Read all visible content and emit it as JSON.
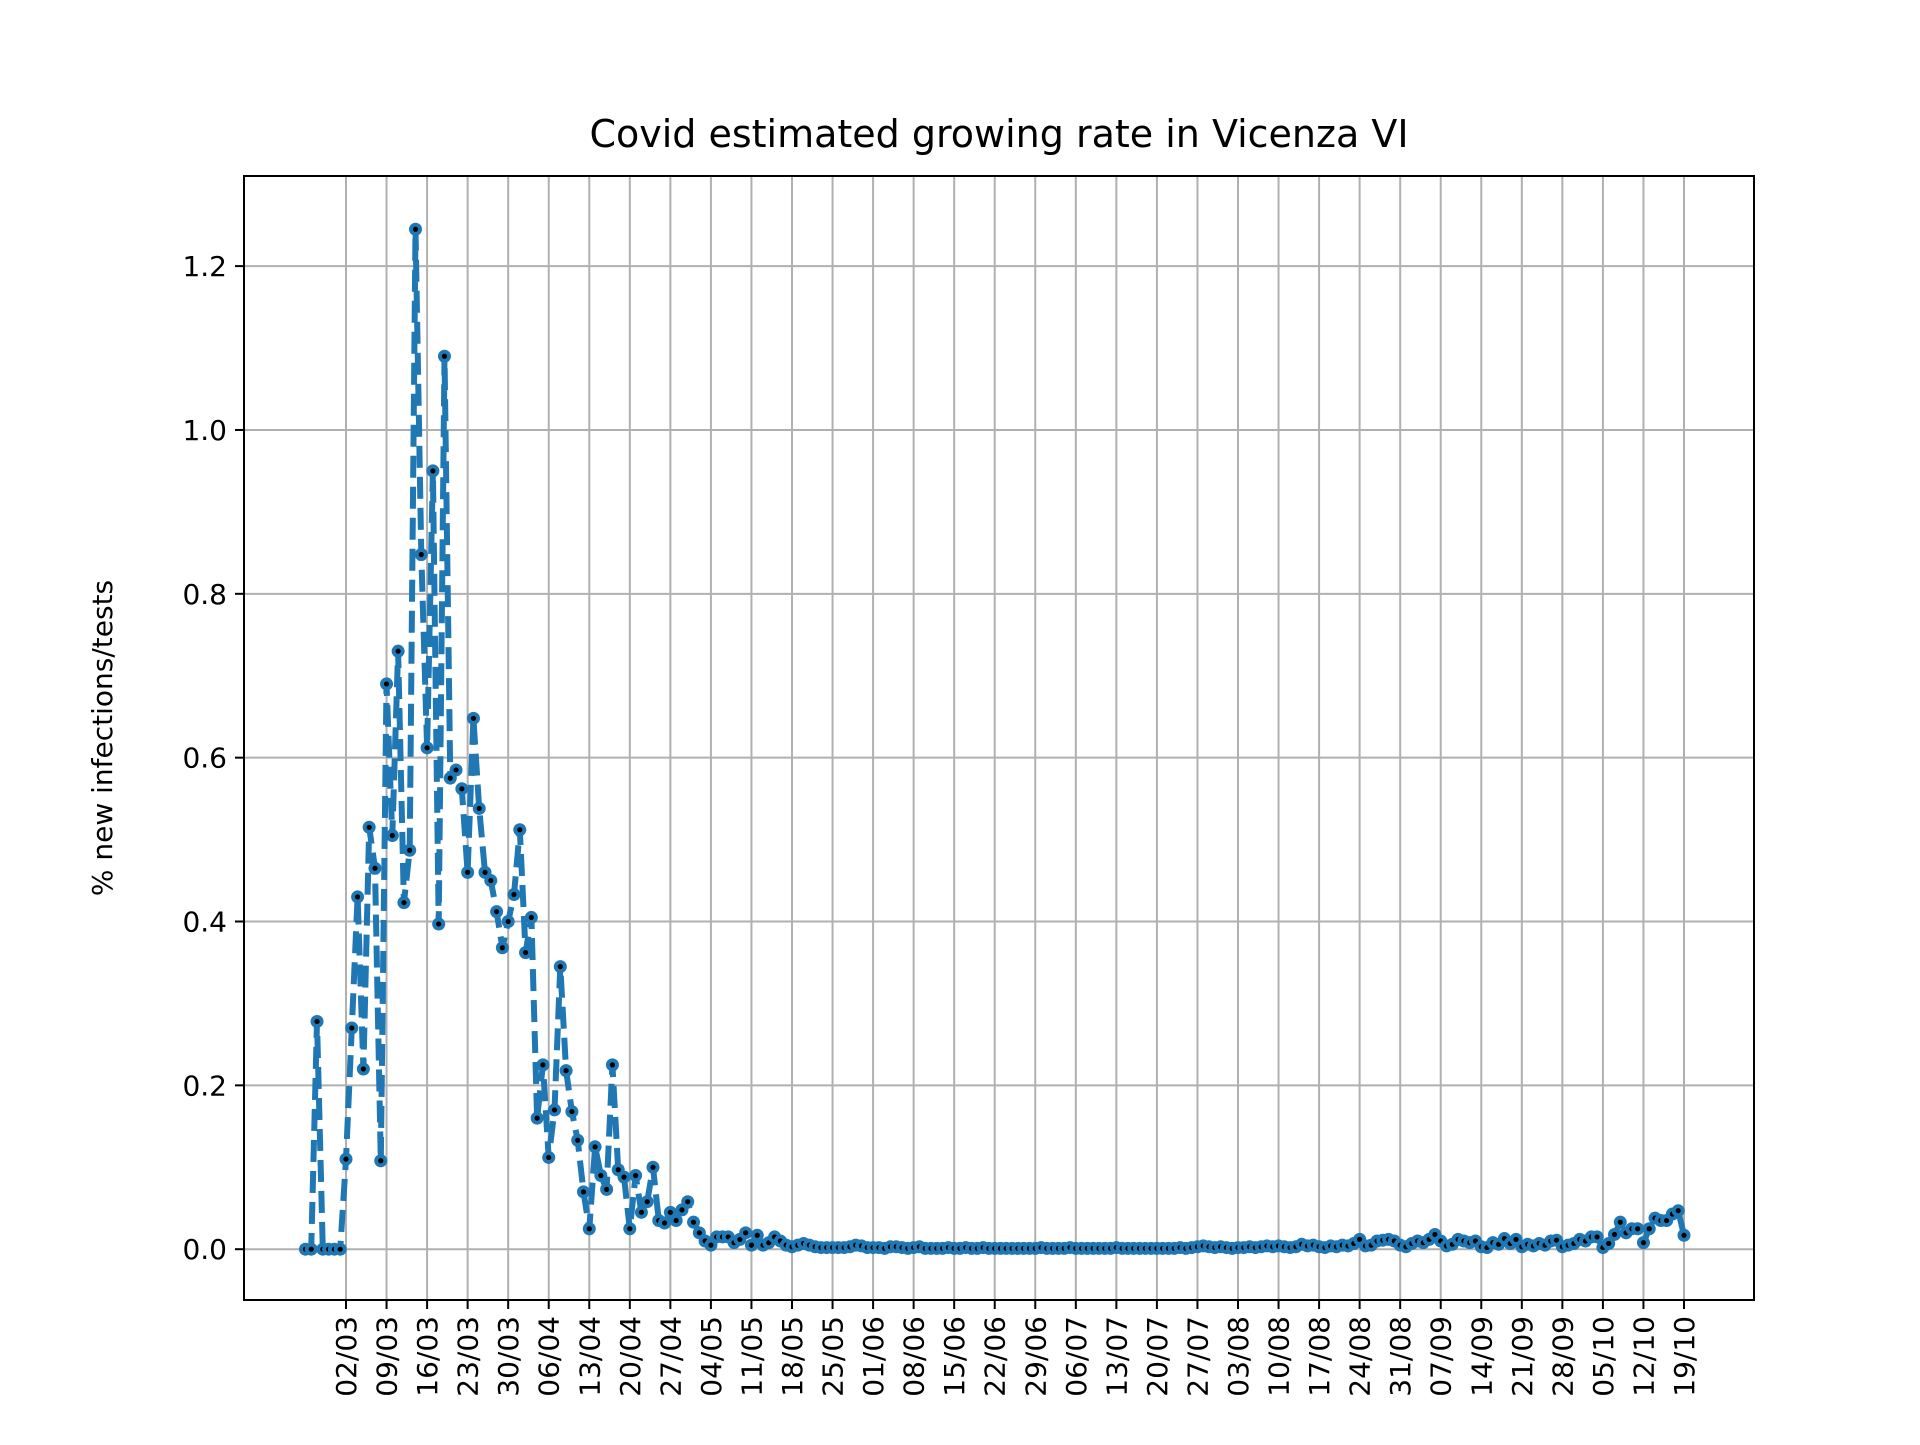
{
  "chart_data": {
    "type": "line",
    "title": "Covid estimated growing rate in Vicenza VI",
    "xlabel": "",
    "ylabel": "% new infections/tests",
    "x_is_date": true,
    "year": 2020,
    "categories": [
      "02/03",
      "09/03",
      "16/03",
      "23/03",
      "30/03",
      "06/04",
      "13/04",
      "20/04",
      "27/04",
      "04/05",
      "11/05",
      "18/05",
      "25/05",
      "01/06",
      "08/06",
      "15/06",
      "22/06",
      "29/06",
      "06/07",
      "13/07",
      "20/07",
      "27/07",
      "03/08",
      "10/08",
      "17/08",
      "24/08",
      "31/08",
      "07/09",
      "14/09",
      "21/09",
      "28/09",
      "05/10",
      "12/10",
      "19/10"
    ],
    "ylim": [
      -0.062,
      1.31
    ],
    "yticks": [
      "0.0",
      "0.2",
      "0.4",
      "0.6",
      "0.8",
      "1.0",
      "1.2"
    ],
    "grid": true,
    "legend": "none",
    "series": [
      {
        "color": "#1f77b4",
        "line_style": "dashed",
        "marker": "dot",
        "points": [
          [
            "2020-02-24",
            0.0
          ],
          [
            "2020-02-25",
            0.0
          ],
          [
            "2020-02-26",
            0.278
          ],
          [
            "2020-02-27",
            0.0
          ],
          [
            "2020-02-28",
            0.0
          ],
          [
            "2020-02-29",
            0.0
          ],
          [
            "2020-03-01",
            0.0
          ],
          [
            "2020-03-02",
            0.11
          ],
          [
            "2020-03-03",
            0.27
          ],
          [
            "2020-03-04",
            0.43
          ],
          [
            "2020-03-05",
            0.22
          ],
          [
            "2020-03-06",
            0.515
          ],
          [
            "2020-03-07",
            0.465
          ],
          [
            "2020-03-08",
            0.108
          ],
          [
            "2020-03-09",
            0.69
          ],
          [
            "2020-03-10",
            0.505
          ],
          [
            "2020-03-11",
            0.73
          ],
          [
            "2020-03-12",
            0.423
          ],
          [
            "2020-03-13",
            0.487
          ],
          [
            "2020-03-14",
            1.245
          ],
          [
            "2020-03-15",
            0.848
          ],
          [
            "2020-03-16",
            0.612
          ],
          [
            "2020-03-17",
            0.95
          ],
          [
            "2020-03-18",
            0.397
          ],
          [
            "2020-03-19",
            1.09
          ],
          [
            "2020-03-20",
            0.575
          ],
          [
            "2020-03-21",
            0.585
          ],
          [
            "2020-03-22",
            0.562
          ],
          [
            "2020-03-23",
            0.46
          ],
          [
            "2020-03-24",
            0.648
          ],
          [
            "2020-03-25",
            0.538
          ],
          [
            "2020-03-26",
            0.46
          ],
          [
            "2020-03-27",
            0.45
          ],
          [
            "2020-03-28",
            0.412
          ],
          [
            "2020-03-29",
            0.368
          ],
          [
            "2020-03-30",
            0.4
          ],
          [
            "2020-03-31",
            0.433
          ],
          [
            "2020-04-01",
            0.512
          ],
          [
            "2020-04-02",
            0.362
          ],
          [
            "2020-04-03",
            0.405
          ],
          [
            "2020-04-04",
            0.16
          ],
          [
            "2020-04-05",
            0.225
          ],
          [
            "2020-04-06",
            0.112
          ],
          [
            "2020-04-07",
            0.17
          ],
          [
            "2020-04-08",
            0.345
          ],
          [
            "2020-04-09",
            0.218
          ],
          [
            "2020-04-10",
            0.168
          ],
          [
            "2020-04-11",
            0.133
          ],
          [
            "2020-04-12",
            0.07
          ],
          [
            "2020-04-13",
            0.025
          ],
          [
            "2020-04-14",
            0.125
          ],
          [
            "2020-04-15",
            0.09
          ],
          [
            "2020-04-16",
            0.073
          ],
          [
            "2020-04-17",
            0.225
          ],
          [
            "2020-04-18",
            0.097
          ],
          [
            "2020-04-19",
            0.088
          ],
          [
            "2020-04-20",
            0.025
          ],
          [
            "2020-04-21",
            0.09
          ],
          [
            "2020-04-22",
            0.045
          ],
          [
            "2020-04-23",
            0.058
          ],
          [
            "2020-04-24",
            0.1
          ],
          [
            "2020-04-25",
            0.035
          ],
          [
            "2020-04-26",
            0.032
          ],
          [
            "2020-04-27",
            0.045
          ],
          [
            "2020-04-28",
            0.035
          ],
          [
            "2020-04-29",
            0.048
          ],
          [
            "2020-04-30",
            0.058
          ],
          [
            "2020-05-01",
            0.033
          ],
          [
            "2020-05-02",
            0.02
          ],
          [
            "2020-05-03",
            0.01
          ],
          [
            "2020-05-04",
            0.005
          ],
          [
            "2020-05-05",
            0.015
          ],
          [
            "2020-05-06",
            0.015
          ],
          [
            "2020-05-07",
            0.015
          ],
          [
            "2020-05-08",
            0.008
          ],
          [
            "2020-05-09",
            0.012
          ],
          [
            "2020-05-10",
            0.02
          ],
          [
            "2020-05-11",
            0.005
          ],
          [
            "2020-05-12",
            0.017
          ],
          [
            "2020-05-13",
            0.005
          ],
          [
            "2020-05-14",
            0.008
          ],
          [
            "2020-05-15",
            0.015
          ],
          [
            "2020-05-16",
            0.01
          ],
          [
            "2020-05-17",
            0.005
          ],
          [
            "2020-05-18",
            0.003
          ],
          [
            "2020-05-19",
            0.005
          ],
          [
            "2020-05-20",
            0.007
          ],
          [
            "2020-05-21",
            0.005
          ],
          [
            "2020-05-22",
            0.003
          ],
          [
            "2020-05-23",
            0.002
          ],
          [
            "2020-05-24",
            0.002
          ],
          [
            "2020-05-25",
            0.002
          ],
          [
            "2020-05-26",
            0.002
          ],
          [
            "2020-05-27",
            0.002
          ],
          [
            "2020-05-28",
            0.003
          ],
          [
            "2020-05-29",
            0.005
          ],
          [
            "2020-05-30",
            0.004
          ],
          [
            "2020-05-31",
            0.002
          ],
          [
            "2020-06-01",
            0.002
          ],
          [
            "2020-06-02",
            0.002
          ],
          [
            "2020-06-03",
            0.001
          ],
          [
            "2020-06-04",
            0.003
          ],
          [
            "2020-06-05",
            0.003
          ],
          [
            "2020-06-06",
            0.002
          ],
          [
            "2020-06-07",
            0.001
          ],
          [
            "2020-06-08",
            0.002
          ],
          [
            "2020-06-09",
            0.003
          ],
          [
            "2020-06-10",
            0.001
          ],
          [
            "2020-06-11",
            0.001
          ],
          [
            "2020-06-12",
            0.001
          ],
          [
            "2020-06-13",
            0.001
          ],
          [
            "2020-06-14",
            0.002
          ],
          [
            "2020-06-15",
            0.001
          ],
          [
            "2020-06-16",
            0.001
          ],
          [
            "2020-06-17",
            0.002
          ],
          [
            "2020-06-18",
            0.001
          ],
          [
            "2020-06-19",
            0.001
          ],
          [
            "2020-06-20",
            0.002
          ],
          [
            "2020-06-21",
            0.001
          ],
          [
            "2020-06-22",
            0.001
          ],
          [
            "2020-06-23",
            0.001
          ],
          [
            "2020-06-24",
            0.001
          ],
          [
            "2020-06-25",
            0.001
          ],
          [
            "2020-06-26",
            0.001
          ],
          [
            "2020-06-27",
            0.001
          ],
          [
            "2020-06-28",
            0.001
          ],
          [
            "2020-06-29",
            0.001
          ],
          [
            "2020-06-30",
            0.002
          ],
          [
            "2020-07-01",
            0.001
          ],
          [
            "2020-07-02",
            0.001
          ],
          [
            "2020-07-03",
            0.001
          ],
          [
            "2020-07-04",
            0.001
          ],
          [
            "2020-07-05",
            0.002
          ],
          [
            "2020-07-06",
            0.001
          ],
          [
            "2020-07-07",
            0.001
          ],
          [
            "2020-07-08",
            0.001
          ],
          [
            "2020-07-09",
            0.001
          ],
          [
            "2020-07-10",
            0.001
          ],
          [
            "2020-07-11",
            0.001
          ],
          [
            "2020-07-12",
            0.001
          ],
          [
            "2020-07-13",
            0.002
          ],
          [
            "2020-07-14",
            0.001
          ],
          [
            "2020-07-15",
            0.001
          ],
          [
            "2020-07-16",
            0.001
          ],
          [
            "2020-07-17",
            0.001
          ],
          [
            "2020-07-18",
            0.001
          ],
          [
            "2020-07-19",
            0.001
          ],
          [
            "2020-07-20",
            0.001
          ],
          [
            "2020-07-21",
            0.001
          ],
          [
            "2020-07-22",
            0.001
          ],
          [
            "2020-07-23",
            0.001
          ],
          [
            "2020-07-24",
            0.002
          ],
          [
            "2020-07-25",
            0.001
          ],
          [
            "2020-07-26",
            0.002
          ],
          [
            "2020-07-27",
            0.003
          ],
          [
            "2020-07-28",
            0.004
          ],
          [
            "2020-07-29",
            0.003
          ],
          [
            "2020-07-30",
            0.002
          ],
          [
            "2020-07-31",
            0.003
          ],
          [
            "2020-08-01",
            0.002
          ],
          [
            "2020-08-02",
            0.001
          ],
          [
            "2020-08-03",
            0.002
          ],
          [
            "2020-08-04",
            0.002
          ],
          [
            "2020-08-05",
            0.003
          ],
          [
            "2020-08-06",
            0.002
          ],
          [
            "2020-08-07",
            0.003
          ],
          [
            "2020-08-08",
            0.004
          ],
          [
            "2020-08-09",
            0.003
          ],
          [
            "2020-08-10",
            0.004
          ],
          [
            "2020-08-11",
            0.003
          ],
          [
            "2020-08-12",
            0.002
          ],
          [
            "2020-08-13",
            0.003
          ],
          [
            "2020-08-14",
            0.006
          ],
          [
            "2020-08-15",
            0.004
          ],
          [
            "2020-08-16",
            0.005
          ],
          [
            "2020-08-17",
            0.003
          ],
          [
            "2020-08-18",
            0.002
          ],
          [
            "2020-08-19",
            0.004
          ],
          [
            "2020-08-20",
            0.003
          ],
          [
            "2020-08-21",
            0.005
          ],
          [
            "2020-08-22",
            0.004
          ],
          [
            "2020-08-23",
            0.007
          ],
          [
            "2020-08-24",
            0.012
          ],
          [
            "2020-08-25",
            0.004
          ],
          [
            "2020-08-26",
            0.005
          ],
          [
            "2020-08-27",
            0.01
          ],
          [
            "2020-08-28",
            0.011
          ],
          [
            "2020-08-29",
            0.012
          ],
          [
            "2020-08-30",
            0.01
          ],
          [
            "2020-08-31",
            0.005
          ],
          [
            "2020-09-01",
            0.003
          ],
          [
            "2020-09-02",
            0.007
          ],
          [
            "2020-09-03",
            0.01
          ],
          [
            "2020-09-04",
            0.008
          ],
          [
            "2020-09-05",
            0.012
          ],
          [
            "2020-09-06",
            0.018
          ],
          [
            "2020-09-07",
            0.01
          ],
          [
            "2020-09-08",
            0.004
          ],
          [
            "2020-09-09",
            0.006
          ],
          [
            "2020-09-10",
            0.012
          ],
          [
            "2020-09-11",
            0.01
          ],
          [
            "2020-09-12",
            0.008
          ],
          [
            "2020-09-13",
            0.01
          ],
          [
            "2020-09-14",
            0.003
          ],
          [
            "2020-09-15",
            0.002
          ],
          [
            "2020-09-16",
            0.008
          ],
          [
            "2020-09-17",
            0.006
          ],
          [
            "2020-09-18",
            0.013
          ],
          [
            "2020-09-19",
            0.007
          ],
          [
            "2020-09-20",
            0.012
          ],
          [
            "2020-09-21",
            0.003
          ],
          [
            "2020-09-22",
            0.006
          ],
          [
            "2020-09-23",
            0.004
          ],
          [
            "2020-09-24",
            0.007
          ],
          [
            "2020-09-25",
            0.005
          ],
          [
            "2020-09-26",
            0.01
          ],
          [
            "2020-09-27",
            0.011
          ],
          [
            "2020-09-28",
            0.003
          ],
          [
            "2020-09-29",
            0.005
          ],
          [
            "2020-09-30",
            0.007
          ],
          [
            "2020-10-01",
            0.012
          ],
          [
            "2020-10-02",
            0.01
          ],
          [
            "2020-10-03",
            0.015
          ],
          [
            "2020-10-04",
            0.015
          ],
          [
            "2020-10-05",
            0.002
          ],
          [
            "2020-10-06",
            0.007
          ],
          [
            "2020-10-07",
            0.018
          ],
          [
            "2020-10-08",
            0.033
          ],
          [
            "2020-10-09",
            0.02
          ],
          [
            "2020-10-10",
            0.025
          ],
          [
            "2020-10-11",
            0.025
          ],
          [
            "2020-10-12",
            0.008
          ],
          [
            "2020-10-13",
            0.025
          ],
          [
            "2020-10-14",
            0.038
          ],
          [
            "2020-10-15",
            0.035
          ],
          [
            "2020-10-16",
            0.035
          ],
          [
            "2020-10-17",
            0.043
          ],
          [
            "2020-10-18",
            0.047
          ],
          [
            "2020-10-19",
            0.017
          ]
        ]
      }
    ]
  }
}
